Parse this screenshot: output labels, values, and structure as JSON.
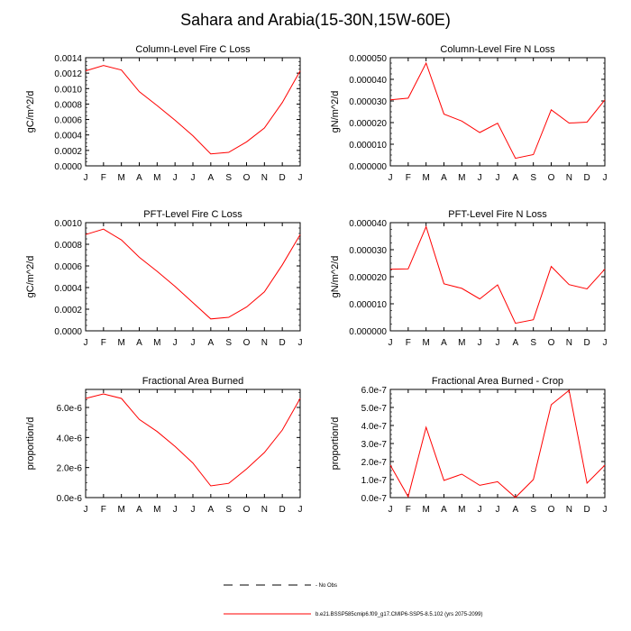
{
  "title": "Sahara and Arabia(15-30N,15W-60E)",
  "colors": {
    "series": "#ff0000",
    "axis": "#000000",
    "obs": "#000000"
  },
  "legend": {
    "entries": [
      {
        "label": "No Obs",
        "style": "dashed",
        "color": "#000000"
      },
      {
        "label": "b.e21.BSSP585cmip6.f09_g17.CMIP6-SSP5-8.5.102 (yrs 2075-2099)",
        "style": "solid",
        "color": "#ff0000"
      }
    ]
  },
  "chart_data": [
    {
      "type": "line",
      "title": "Column-Level Fire C Loss",
      "ylabel": "gC/m^2/d",
      "categories": [
        "J",
        "F",
        "M",
        "A",
        "M",
        "J",
        "J",
        "A",
        "S",
        "O",
        "N",
        "D",
        "J"
      ],
      "ylim": [
        0,
        0.0014
      ],
      "yticks": [
        "0.0000",
        "0.0002",
        "0.0004",
        "0.0006",
        "0.0008",
        "0.0010",
        "0.0012",
        "0.0014"
      ],
      "series": [
        {
          "values": [
            0.00123,
            0.0013,
            0.00124,
            0.00096,
            0.00078,
            0.00059,
            0.00039,
            0.000155,
            0.000175,
            0.00031,
            0.00049,
            0.00082,
            0.00123
          ]
        }
      ]
    },
    {
      "type": "line",
      "title": "Column-Level Fire N Loss",
      "ylabel": "gN/m^2/d",
      "categories": [
        "J",
        "F",
        "M",
        "A",
        "M",
        "J",
        "J",
        "A",
        "S",
        "O",
        "N",
        "D",
        "J"
      ],
      "ylim": [
        0,
        5e-05
      ],
      "yticks": [
        "0.000000",
        "0.000010",
        "0.000020",
        "0.000030",
        "0.000040",
        "0.000050"
      ],
      "series": [
        {
          "values": [
            3.05e-05,
            3.13e-05,
            4.75e-05,
            2.39e-05,
            2.07e-05,
            1.54e-05,
            1.97e-05,
            3.5e-06,
            5.2e-06,
            2.59e-05,
            1.98e-05,
            2.02e-05,
            3.05e-05
          ]
        }
      ]
    },
    {
      "type": "line",
      "title": "PFT-Level Fire C Loss",
      "ylabel": "gC/m^2/d",
      "categories": [
        "J",
        "F",
        "M",
        "A",
        "M",
        "J",
        "J",
        "A",
        "S",
        "O",
        "N",
        "D",
        "J"
      ],
      "ylim": [
        0,
        0.001
      ],
      "yticks": [
        "0.0000",
        "0.0002",
        "0.0004",
        "0.0006",
        "0.0008",
        "0.0010"
      ],
      "series": [
        {
          "values": [
            0.00089,
            0.00094,
            0.00084,
            0.00068,
            0.00055,
            0.00041,
            0.00026,
            0.00011,
            0.000125,
            0.00022,
            0.00036,
            0.00061,
            0.00089
          ]
        }
      ]
    },
    {
      "type": "line",
      "title": "PFT-Level Fire N Loss",
      "ylabel": "gN/m^2/d",
      "categories": [
        "J",
        "F",
        "M",
        "A",
        "M",
        "J",
        "J",
        "A",
        "S",
        "O",
        "N",
        "D",
        "J"
      ],
      "ylim": [
        0,
        4e-05
      ],
      "yticks": [
        "0.000000",
        "0.000010",
        "0.000020",
        "0.000030",
        "0.000040"
      ],
      "series": [
        {
          "values": [
            2.28e-05,
            2.29e-05,
            3.85e-05,
            1.74e-05,
            1.57e-05,
            1.18e-05,
            1.7e-05,
            2.8e-06,
            4.1e-06,
            2.38e-05,
            1.71e-05,
            1.55e-05,
            2.28e-05
          ]
        }
      ]
    },
    {
      "type": "line",
      "title": "Fractional Area Burned",
      "ylabel": "proportion/d",
      "categories": [
        "J",
        "F",
        "M",
        "A",
        "M",
        "J",
        "J",
        "A",
        "S",
        "O",
        "N",
        "D",
        "J"
      ],
      "ylim": [
        0,
        7.2e-06
      ],
      "yticks": [
        "0.0e-6",
        "2.0e-6",
        "4.0e-6",
        "6.0e-6"
      ],
      "ytick_values": [
        0,
        2e-06,
        4e-06,
        6e-06
      ],
      "series": [
        {
          "values": [
            6.6e-06,
            6.9e-06,
            6.6e-06,
            5.2e-06,
            4.4e-06,
            3.4e-06,
            2.3e-06,
            7.8e-07,
            9.5e-07,
            1.9e-06,
            3e-06,
            4.5e-06,
            6.6e-06
          ]
        }
      ]
    },
    {
      "type": "line",
      "title": "Fractional Area Burned - Crop",
      "ylabel": "proportion/d",
      "categories": [
        "J",
        "F",
        "M",
        "A",
        "M",
        "J",
        "J",
        "A",
        "S",
        "O",
        "N",
        "D",
        "J"
      ],
      "ylim": [
        0,
        6e-07
      ],
      "yticks": [
        "0.0e-7",
        "1.0e-7",
        "2.0e-7",
        "3.0e-7",
        "4.0e-7",
        "5.0e-7",
        "6.0e-7"
      ],
      "series": [
        {
          "values": [
            1.8e-07,
            5e-09,
            3.9e-07,
            9.5e-08,
            1.3e-07,
            6.8e-08,
            8.8e-08,
            5e-10,
            1e-07,
            5.15e-07,
            5.95e-07,
            8e-08,
            1.8e-07
          ]
        }
      ]
    }
  ]
}
